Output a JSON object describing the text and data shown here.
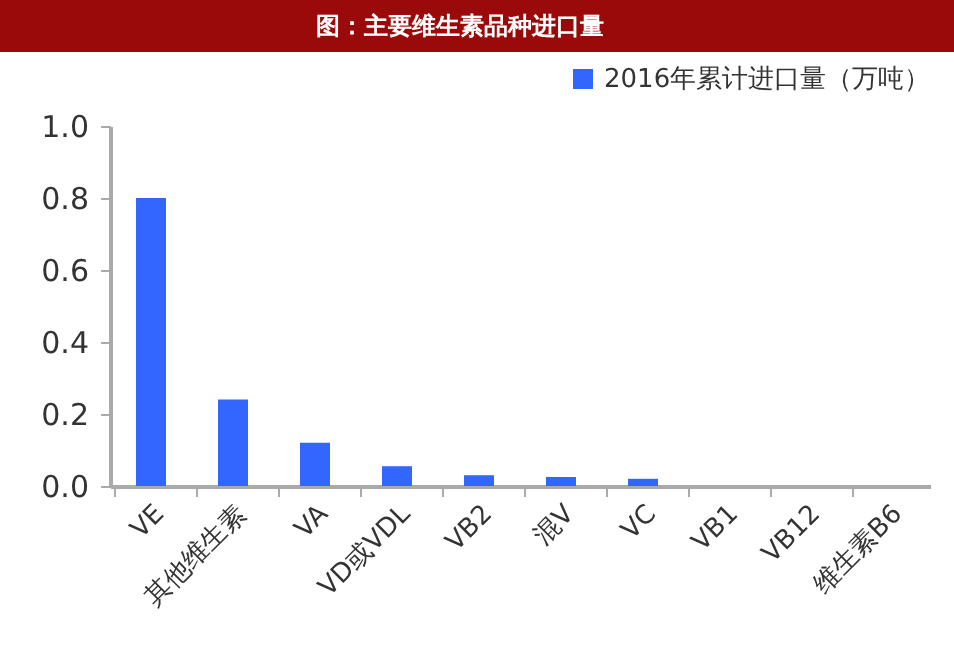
{
  "chart_data": {
    "type": "bar",
    "title": "图：主要维生素品种进口量",
    "categories": [
      "VE",
      "其他维生素",
      "VA",
      "VD或VDL",
      "VB2",
      "混V",
      "VC",
      "VB1",
      "VB12",
      "维生素B6"
    ],
    "series": [
      {
        "name": "2016年累计进口量（万吨）",
        "color": "#3366ff",
        "values": [
          0.8,
          0.24,
          0.12,
          0.055,
          0.03,
          0.025,
          0.02,
          0,
          0,
          0
        ]
      }
    ],
    "ylim": [
      0,
      1.0
    ],
    "yticks": [
      {
        "value": 0,
        "label": "0.0"
      },
      {
        "value": 0.2,
        "label": "0.2"
      },
      {
        "value": 0.4,
        "label": "0.4"
      },
      {
        "value": 0.6,
        "label": "0.6"
      },
      {
        "value": 0.8,
        "label": "0.8"
      },
      {
        "value": 1.0,
        "label": "1.0"
      }
    ],
    "grid": false,
    "legend": "top right"
  }
}
